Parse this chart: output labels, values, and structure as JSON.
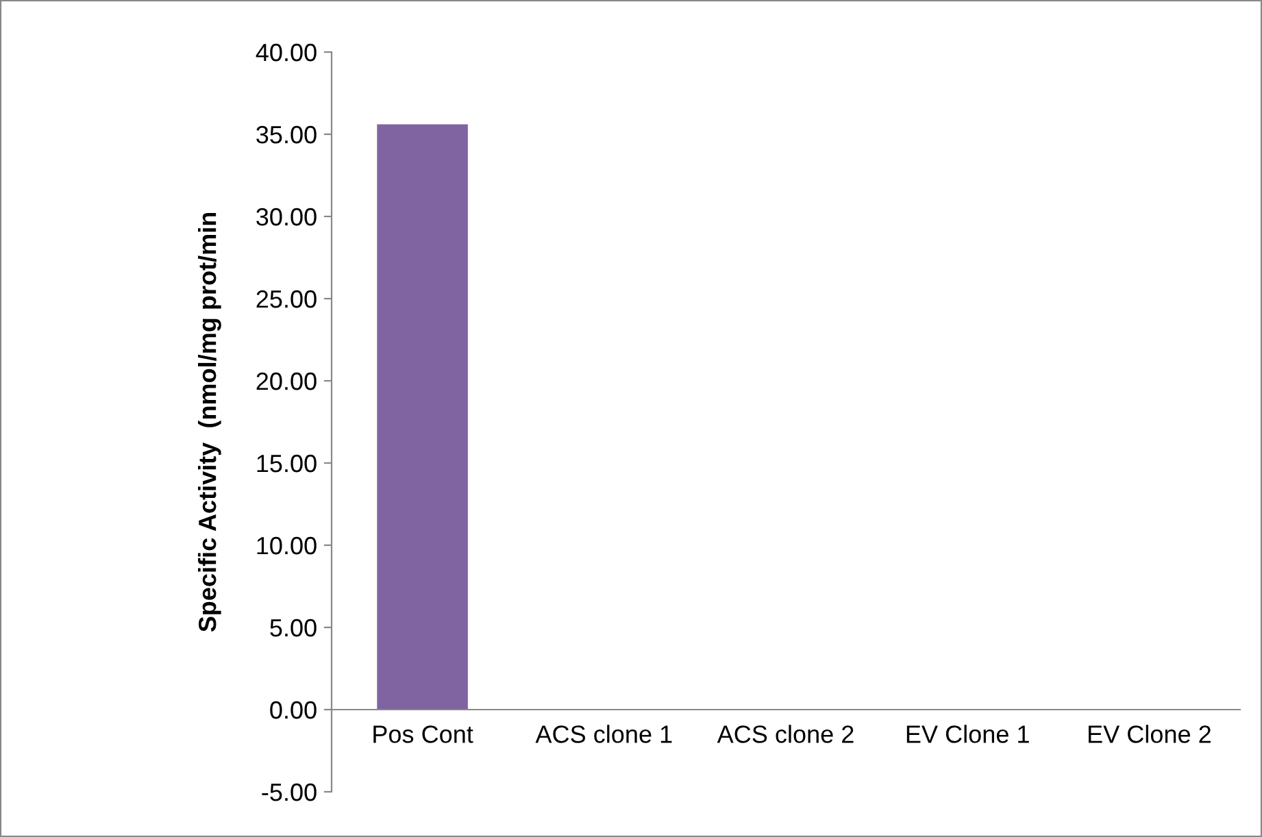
{
  "chart_data": {
    "type": "bar",
    "ylabel": "Specific Activity  (nmol/mg prot/min",
    "categories": [
      "Pos Cont",
      "ACS clone 1",
      "ACS clone 2",
      "EV Clone 1",
      "EV Clone 2"
    ],
    "values": [
      35.6,
      0,
      0,
      0,
      0
    ],
    "color": "#8064a2",
    "ylim": [
      -5,
      40
    ],
    "yticks": [
      {
        "value": -5,
        "label": "-5.00"
      },
      {
        "value": 0,
        "label": "0.00"
      },
      {
        "value": 5,
        "label": "5.00"
      },
      {
        "value": 10,
        "label": "10.00"
      },
      {
        "value": 15,
        "label": "15.00"
      },
      {
        "value": 20,
        "label": "20.00"
      },
      {
        "value": 25,
        "label": "25.00"
      },
      {
        "value": 30,
        "label": "30.00"
      },
      {
        "value": 35,
        "label": "35.00"
      },
      {
        "value": 40,
        "label": "40.00"
      }
    ],
    "grid": false,
    "legend": false
  }
}
